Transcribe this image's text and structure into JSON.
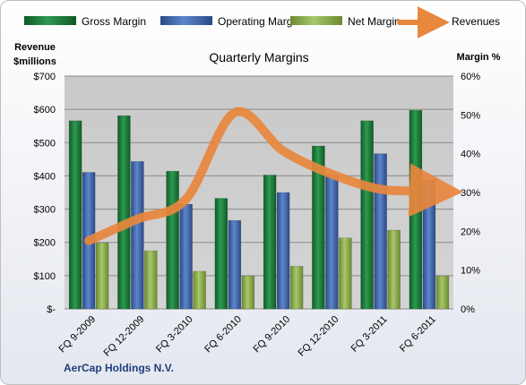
{
  "chart_data": {
    "type": "bar",
    "title": "Quarterly Margins",
    "company": "AerCap Holdings N.V.",
    "categories": [
      "FQ 9-2009",
      "FQ 12-2009",
      "FQ 3-2010",
      "FQ 6-2010",
      "FQ 9-2010",
      "FQ 12-2010",
      "FQ 3-2011",
      "FQ 6-2011"
    ],
    "y_left": {
      "label_line1": "Revenue",
      "label_line2": "$millions",
      "ticks": [
        "$-",
        "$100",
        "$200",
        "$300",
        "$400",
        "$500",
        "$600",
        "$700"
      ],
      "range": [
        0,
        700
      ]
    },
    "y_right": {
      "label": "Margin %",
      "ticks": [
        "0%",
        "10%",
        "20%",
        "30%",
        "40%",
        "50%",
        "60%"
      ],
      "range": [
        0,
        0.6
      ]
    },
    "series": [
      {
        "name": "Gross Margin",
        "axis": "right",
        "type": "bar",
        "color": "#1e7a3c",
        "values": [
          0.485,
          0.498,
          0.355,
          0.285,
          0.345,
          0.42,
          0.485,
          0.512
        ]
      },
      {
        "name": "Operating Margin",
        "axis": "right",
        "type": "bar",
        "color": "#3f67ad",
        "values": [
          0.352,
          0.38,
          0.27,
          0.228,
          0.3,
          0.345,
          0.4,
          0.333
        ]
      },
      {
        "name": "Net Margin",
        "axis": "right",
        "type": "bar",
        "color": "#8cae4c",
        "values": [
          0.17,
          0.15,
          0.097,
          0.085,
          0.11,
          0.183,
          0.203,
          0.085
        ]
      },
      {
        "name": "Revenues",
        "axis": "left",
        "type": "line",
        "color": "#e8873d",
        "values": [
          205,
          270,
          330,
          590,
          475,
          405,
          360,
          355
        ]
      }
    ],
    "grid": true,
    "legend_position": "top"
  }
}
